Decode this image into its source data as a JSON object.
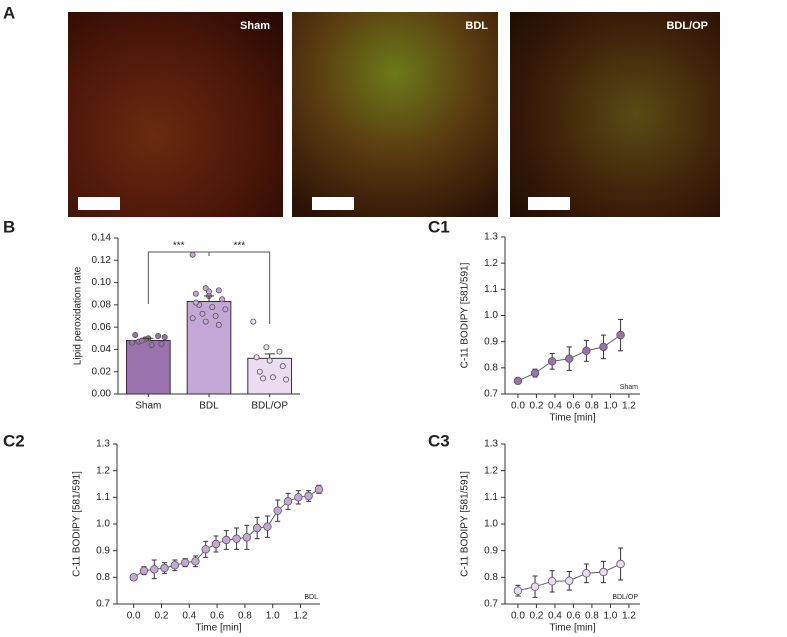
{
  "figure": {
    "panels": [
      "A",
      "B",
      "C1",
      "C2",
      "C3"
    ],
    "images": [
      "Sham",
      "BDL",
      "BDL/OP"
    ]
  },
  "chart_data": [
    {
      "type": "bar",
      "ylabel": "Lipid peroxidation rate",
      "categories": [
        "Sham",
        "BDL",
        "BDL/OP"
      ],
      "values": [
        0.048,
        0.083,
        0.032
      ],
      "errors": [
        0.002,
        0.005,
        0.004
      ],
      "colors": [
        "#9a72ae",
        "#c4a7d6",
        "#ebdcf1"
      ],
      "points": [
        [
          0.046,
          0.049,
          0.052,
          0.053,
          0.05,
          0.045,
          0.047,
          0.044,
          0.051,
          0.048
        ],
        [
          0.125,
          0.095,
          0.093,
          0.09,
          0.088,
          0.085,
          0.08,
          0.078,
          0.076,
          0.072,
          0.07,
          0.068,
          0.065,
          0.062,
          0.082,
          0.092
        ],
        [
          0.065,
          0.042,
          0.038,
          0.033,
          0.03,
          0.025,
          0.02,
          0.015,
          0.013,
          0.014
        ]
      ],
      "ylim": [
        0,
        0.14
      ],
      "yticks": [
        {
          "value": 0,
          "label": "0.00"
        },
        0.02,
        0.04,
        0.06,
        0.08,
        {
          "value": 0.1,
          "label": "0.10"
        },
        0.12,
        0.14
      ],
      "annotations": [
        "***",
        "***"
      ]
    },
    {
      "type": "line",
      "xlabel": "Time [min]",
      "ylabel": "C-11 BODIPY [581/591]",
      "x": [
        0,
        0.185,
        0.37,
        0.555,
        0.74,
        0.925,
        1.11
      ],
      "series": [
        {
          "name": "Sham",
          "color": "#9a72ae",
          "values": [
            0.75,
            0.78,
            0.825,
            0.835,
            0.865,
            0.88,
            0.925
          ],
          "errors": [
            0.01,
            0.015,
            0.03,
            0.045,
            0.04,
            0.045,
            0.06
          ]
        }
      ],
      "xlim": [
        -0.14,
        1.32
      ],
      "xticks": [
        {
          "value": 0,
          "label": "0.0"
        },
        0.2,
        0.4,
        0.6,
        0.8,
        {
          "value": 1,
          "label": "1.0"
        },
        1.2
      ],
      "ylim": [
        0.7,
        1.3
      ],
      "yticks": [
        0.7,
        0.8,
        0.9,
        {
          "value": 1,
          "label": "1.0"
        },
        1.1,
        1.2,
        1.3
      ]
    },
    {
      "type": "line",
      "xlabel": "Time [min]",
      "ylabel": "C-11 BODIPY [581/591]",
      "x": [
        0,
        0.074,
        0.148,
        0.222,
        0.296,
        0.37,
        0.444,
        0.518,
        0.592,
        0.666,
        0.74,
        0.814,
        0.888,
        0.962,
        1.036,
        1.11,
        1.184,
        1.258,
        1.332
      ],
      "series": [
        {
          "name": "BDL",
          "color": "#c4a7d6",
          "values": [
            0.8,
            0.825,
            0.83,
            0.835,
            0.845,
            0.855,
            0.86,
            0.905,
            0.925,
            0.94,
            0.945,
            0.95,
            0.985,
            0.99,
            1.05,
            1.085,
            1.1,
            1.105,
            1.13
          ],
          "errors": [
            0.01,
            0.015,
            0.035,
            0.02,
            0.02,
            0.015,
            0.02,
            0.03,
            0.03,
            0.035,
            0.04,
            0.045,
            0.04,
            0.04,
            0.04,
            0.03,
            0.025,
            0.02,
            0.015
          ]
        }
      ],
      "xlim": [
        -0.12,
        1.34
      ],
      "xticks": [
        {
          "value": 0,
          "label": "0.0"
        },
        0.2,
        0.4,
        0.6,
        0.8,
        {
          "value": 1,
          "label": "1.0"
        },
        1.2
      ],
      "ylim": [
        0.7,
        1.3
      ],
      "yticks": [
        0.7,
        0.8,
        0.9,
        {
          "value": 1,
          "label": "1.0"
        },
        1.1,
        1.2,
        1.3
      ]
    },
    {
      "type": "line",
      "xlabel": "Time [min]",
      "ylabel": "C-11 BODIPY [581/591]",
      "x": [
        0,
        0.185,
        0.37,
        0.555,
        0.74,
        0.925,
        1.11
      ],
      "series": [
        {
          "name": "BDL/OP",
          "color": "#ebdcf1",
          "values": [
            0.75,
            0.765,
            0.785,
            0.787,
            0.815,
            0.82,
            0.85
          ],
          "errors": [
            0.02,
            0.04,
            0.04,
            0.035,
            0.035,
            0.04,
            0.06
          ]
        }
      ],
      "xlim": [
        -0.14,
        1.32
      ],
      "xticks": [
        {
          "value": 0,
          "label": "0.0"
        },
        0.2,
        0.4,
        0.6,
        0.8,
        {
          "value": 1,
          "label": "1.0"
        },
        1.2
      ],
      "ylim": [
        0.7,
        1.3
      ],
      "yticks": [
        0.7,
        0.8,
        0.9,
        {
          "value": 1,
          "label": "1.0"
        },
        1.1,
        1.2,
        1.3
      ]
    }
  ]
}
